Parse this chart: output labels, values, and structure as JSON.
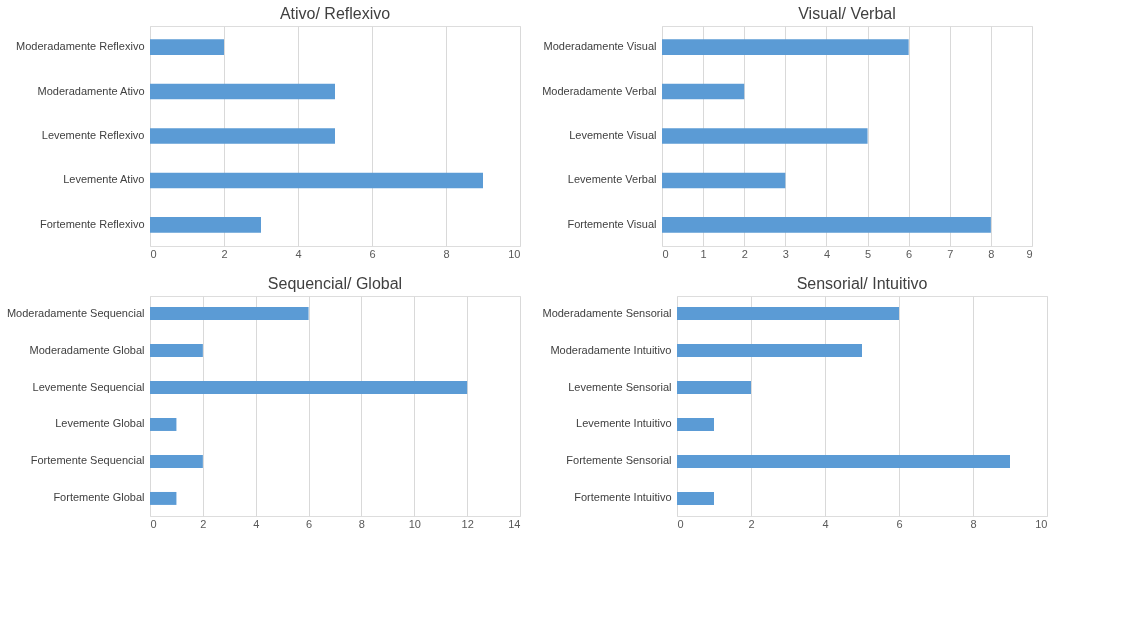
{
  "chart_data": [
    {
      "type": "bar",
      "orientation": "horizontal",
      "title": "Ativo/ Reflexivo",
      "categories": [
        "Moderadamente Reflexivo",
        "Moderadamente Ativo",
        "Levemente Reflexivo",
        "Levemente Ativo",
        "Fortemente Reflexivo"
      ],
      "values": [
        2,
        5,
        5,
        9,
        3
      ],
      "color": "#5b9bd5",
      "xlim": [
        0,
        10
      ],
      "xticks": [
        0,
        2,
        4,
        6,
        8,
        10
      ],
      "grid": "x"
    },
    {
      "type": "bar",
      "orientation": "horizontal",
      "title": "Visual/ Verbal",
      "categories": [
        "Moderadamente Visual",
        "Moderadamente Verbal",
        "Levemente Visual",
        "Levemente Verbal",
        "Fortemente Visual"
      ],
      "values": [
        6,
        2,
        5,
        3,
        8
      ],
      "color": "#5b9bd5",
      "xlim": [
        0,
        9
      ],
      "xticks": [
        0,
        1,
        2,
        3,
        4,
        5,
        6,
        7,
        8,
        9
      ],
      "grid": "x"
    },
    {
      "type": "bar",
      "orientation": "horizontal",
      "title": "Sequencial/ Global",
      "categories": [
        "Moderadamente Sequencial",
        "Moderadamente Global",
        "Levemente Sequencial",
        "Levemente Global",
        "Fortemente Sequencial",
        "Fortemente Global"
      ],
      "values": [
        6,
        2,
        12,
        1,
        2,
        1
      ],
      "color": "#5b9bd5",
      "xlim": [
        0,
        14
      ],
      "xticks": [
        0,
        2,
        4,
        6,
        8,
        10,
        12,
        14
      ],
      "grid": "x"
    },
    {
      "type": "bar",
      "orientation": "horizontal",
      "title": "Sensorial/ Intuitivo",
      "categories": [
        "Moderadamente Sensorial",
        "Moderadamente Intuitivo",
        "Levemente Sensorial",
        "Levemente Intuitivo",
        "Fortemente Sensorial",
        "Fortemente Intuitivo"
      ],
      "values": [
        6,
        5,
        2,
        1,
        9,
        1
      ],
      "color": "#5b9bd5",
      "xlim": [
        0,
        10
      ],
      "xticks": [
        0,
        2,
        4,
        6,
        8,
        10
      ],
      "grid": "x"
    }
  ]
}
